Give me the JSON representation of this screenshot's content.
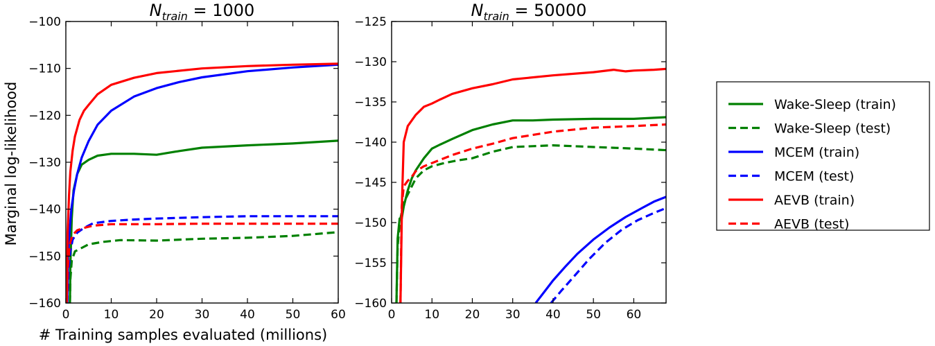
{
  "figure": {
    "xlabel": "# Training samples evaluated (millions)",
    "ylabel": "Marginal log-likelihood"
  },
  "legend": {
    "placement": "right",
    "items": [
      {
        "label": "Wake-Sleep (train)",
        "color": "#008000",
        "dash": "solid"
      },
      {
        "label": "Wake-Sleep (test)",
        "color": "#008000",
        "dash": "dashed"
      },
      {
        "label": "MCEM (train)",
        "color": "#0000ff",
        "dash": "solid"
      },
      {
        "label": "MCEM (test)",
        "color": "#0000ff",
        "dash": "dashed"
      },
      {
        "label": "AEVB (train)",
        "color": "#ff0000",
        "dash": "solid"
      },
      {
        "label": "AEVB (test)",
        "color": "#ff0000",
        "dash": "dashed"
      }
    ]
  },
  "chart_data": [
    {
      "type": "line",
      "title": {
        "prefix": "N",
        "subscript": "train",
        "suffix": " = 1000"
      },
      "xlim": [
        0,
        60
      ],
      "ylim": [
        -160,
        -100
      ],
      "xticks": [
        0,
        10,
        20,
        30,
        40,
        50,
        60
      ],
      "yticks": [
        -160,
        -150,
        -140,
        -130,
        -120,
        -110,
        -100
      ],
      "xtick_labels": [
        "0",
        "10",
        "20",
        "30",
        "40",
        "50",
        "60"
      ],
      "ytick_labels": [
        "−160",
        "−150",
        "−140",
        "−130",
        "−120",
        "−110",
        "−100"
      ],
      "series": [
        {
          "name": "Wake-Sleep (train)",
          "color": "#008000",
          "dash": "solid",
          "x": [
            0.9,
            1.0,
            1.3,
            1.7,
            2.5,
            3.5,
            5,
            7,
            10,
            15,
            20,
            25,
            30,
            40,
            50,
            60
          ],
          "y": [
            -160,
            -152,
            -142,
            -136,
            -132.5,
            -130.5,
            -129.5,
            -128.6,
            -128.2,
            -128.2,
            -128.4,
            -127.6,
            -126.9,
            -126.4,
            -126.0,
            -125.4
          ]
        },
        {
          "name": "Wake-Sleep (test)",
          "color": "#008000",
          "dash": "dashed",
          "x": [
            0.9,
            1.0,
            1.3,
            2,
            3,
            5,
            8,
            12,
            20,
            30,
            40,
            50,
            60
          ],
          "y": [
            -160,
            -155,
            -151,
            -149,
            -148.5,
            -147.5,
            -147,
            -146.6,
            -146.7,
            -146.3,
            -146.1,
            -145.7,
            -144.9
          ]
        },
        {
          "name": "MCEM (train)",
          "color": "#0000ff",
          "dash": "solid",
          "x": [
            0.3,
            0.5,
            0.8,
            1.2,
            1.8,
            2.5,
            3.5,
            5,
            7,
            10,
            15,
            20,
            25,
            30,
            40,
            50,
            60
          ],
          "y": [
            -160,
            -150,
            -145,
            -140,
            -136,
            -132.5,
            -129,
            -125.5,
            -122,
            -119,
            -116,
            -114.2,
            -112.9,
            -111.9,
            -110.6,
            -109.8,
            -109.2
          ]
        },
        {
          "name": "MCEM (test)",
          "color": "#0000ff",
          "dash": "dashed",
          "x": [
            0.3,
            0.6,
            1,
            1.5,
            2.5,
            4,
            6,
            10,
            15,
            20,
            30,
            40,
            50,
            60
          ],
          "y": [
            -160,
            -153,
            -149,
            -146.5,
            -145,
            -144,
            -143,
            -142.5,
            -142.2,
            -142,
            -141.7,
            -141.5,
            -141.5,
            -141.5
          ]
        },
        {
          "name": "AEVB (train)",
          "color": "#ff0000",
          "dash": "solid",
          "x": [
            0.2,
            0.4,
            0.7,
            1.0,
            1.5,
            2,
            3,
            4,
            5,
            7,
            10,
            15,
            20,
            30,
            40,
            50,
            60
          ],
          "y": [
            -160,
            -145,
            -137,
            -132,
            -127.5,
            -124.5,
            -121,
            -119,
            -117.8,
            -115.5,
            -113.5,
            -112,
            -111,
            -110,
            -109.5,
            -109.2,
            -109
          ]
        },
        {
          "name": "AEVB (test)",
          "color": "#ff0000",
          "dash": "dashed",
          "x": [
            0.2,
            0.4,
            0.7,
            1,
            1.5,
            2.5,
            4,
            6,
            10,
            20,
            30,
            40,
            50,
            60
          ],
          "y": [
            -160,
            -153,
            -149,
            -147,
            -145.5,
            -144.5,
            -144,
            -143.5,
            -143.2,
            -143.2,
            -143.1,
            -143.1,
            -143.1,
            -143.1
          ]
        }
      ]
    },
    {
      "type": "line",
      "title": {
        "prefix": "N",
        "subscript": "train",
        "suffix": " = 50000"
      },
      "xlim": [
        0,
        68
      ],
      "ylim": [
        -160,
        -125
      ],
      "xticks": [
        0,
        10,
        20,
        30,
        40,
        50,
        60
      ],
      "yticks": [
        -160,
        -155,
        -150,
        -145,
        -140,
        -135,
        -130,
        -125
      ],
      "xtick_labels": [
        "0",
        "10",
        "20",
        "30",
        "40",
        "50",
        "60"
      ],
      "ytick_labels": [
        "−160",
        "−155",
        "−150",
        "−145",
        "−140",
        "−135",
        "−130",
        "−125"
      ],
      "series": [
        {
          "name": "Wake-Sleep (train)",
          "color": "#008000",
          "dash": "solid",
          "x": [
            1.2,
            1.5,
            2,
            2.5,
            3,
            4,
            5,
            6,
            8,
            10,
            12,
            15,
            20,
            25,
            30,
            35,
            40,
            50,
            60,
            68
          ],
          "y": [
            -160,
            -152,
            -149.5,
            -149.5,
            -148,
            -146,
            -144.5,
            -143.5,
            -142,
            -140.8,
            -140.3,
            -139.6,
            -138.5,
            -137.8,
            -137.3,
            -137.3,
            -137.2,
            -137.1,
            -137.1,
            -136.9
          ]
        },
        {
          "name": "Wake-Sleep (test)",
          "color": "#008000",
          "dash": "dashed",
          "x": [
            1.2,
            1.5,
            2,
            3,
            4,
            5,
            6,
            8,
            10,
            13,
            16,
            20,
            25,
            30,
            35,
            40,
            45,
            50,
            55,
            60,
            68
          ],
          "y": [
            -160,
            -153,
            -150,
            -147.5,
            -146.5,
            -145.5,
            -144.5,
            -143.5,
            -143,
            -142.6,
            -142.3,
            -142,
            -141.2,
            -140.6,
            -140.5,
            -140.4,
            -140.5,
            -140.6,
            -140.7,
            -140.8,
            -141
          ]
        },
        {
          "name": "MCEM (train)",
          "color": "#0000ff",
          "dash": "solid",
          "x": [
            35.7,
            38,
            40,
            43,
            46,
            50,
            54,
            58,
            62,
            65,
            68
          ],
          "y": [
            -160,
            -158.5,
            -157.2,
            -155.5,
            -153.9,
            -152.1,
            -150.6,
            -149.3,
            -148.2,
            -147.4,
            -146.8
          ]
        },
        {
          "name": "MCEM (test)",
          "color": "#0000ff",
          "dash": "dashed",
          "x": [
            39.5,
            42,
            45,
            49,
            53,
            57,
            61,
            65,
            68
          ],
          "y": [
            -160,
            -158.5,
            -156.8,
            -154.5,
            -152.5,
            -150.9,
            -149.7,
            -148.8,
            -148.2
          ]
        },
        {
          "name": "AEVB (train)",
          "color": "#ff0000",
          "dash": "solid",
          "x": [
            2.2,
            2.6,
            3,
            3.5,
            4,
            5,
            6,
            7,
            8,
            10,
            12,
            15,
            20,
            25,
            30,
            40,
            50,
            55,
            58,
            60,
            65,
            68
          ],
          "y": [
            -160,
            -147,
            -140,
            -139,
            -138,
            -137.3,
            -136.6,
            -136.1,
            -135.6,
            -135.2,
            -134.7,
            -134,
            -133.3,
            -132.8,
            -132.2,
            -131.7,
            -131.3,
            -131.0,
            -131.2,
            -131.1,
            -131,
            -130.9
          ]
        },
        {
          "name": "AEVB (test)",
          "color": "#ff0000",
          "dash": "dashed",
          "x": [
            2.2,
            2.5,
            3,
            4,
            5,
            6,
            8,
            10,
            15,
            20,
            25,
            30,
            40,
            50,
            60,
            68
          ],
          "y": [
            -160,
            -148,
            -145.5,
            -144.8,
            -144.3,
            -143.6,
            -143,
            -142.6,
            -141.6,
            -140.8,
            -140.2,
            -139.5,
            -138.7,
            -138.2,
            -138.0,
            -137.8
          ]
        }
      ]
    }
  ]
}
